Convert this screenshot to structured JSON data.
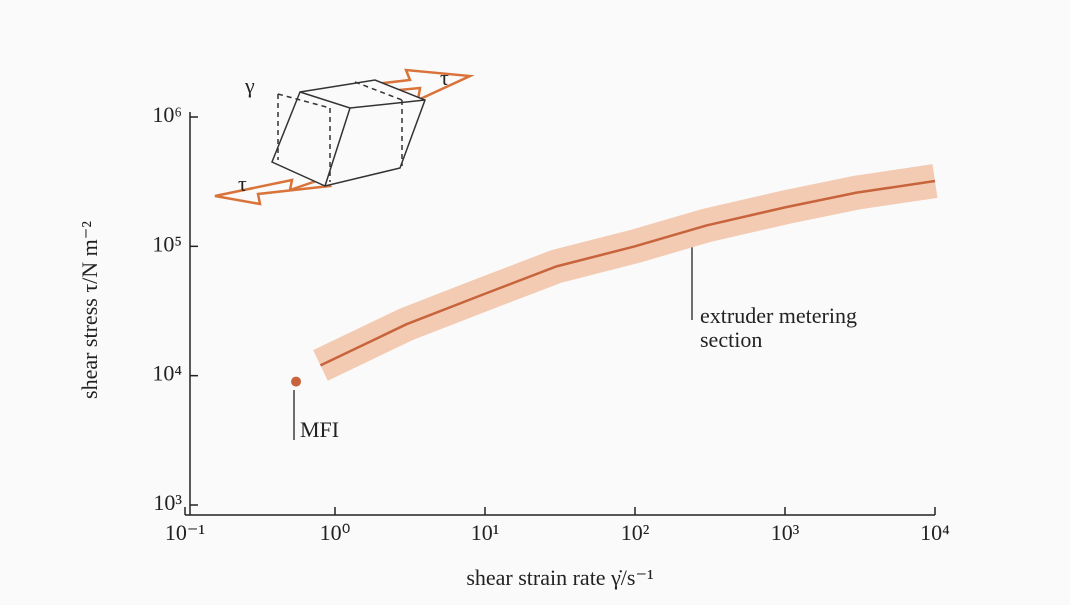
{
  "chart_data": {
    "type": "line",
    "x": [
      0.8,
      3,
      10,
      30,
      100,
      300,
      1000,
      3000,
      10000
    ],
    "values": [
      12000,
      25000,
      43000,
      70000,
      100000,
      145000,
      200000,
      260000,
      320000
    ],
    "color": "#c8643c",
    "band_color": "#f3cbb3",
    "xlog": true,
    "ylog": true,
    "xlim": [
      0.1,
      10000
    ],
    "ylim": [
      1000,
      1000000
    ],
    "xticks": [
      {
        "value": 0.1,
        "label": "10⁻¹"
      },
      {
        "value": 1,
        "label": "10⁰"
      },
      {
        "value": 10,
        "label": "10¹"
      },
      {
        "value": 100,
        "label": "10²"
      },
      {
        "value": 1000,
        "label": "10³"
      },
      {
        "value": 10000,
        "label": "10⁴"
      }
    ],
    "yticks": [
      {
        "value": 1000,
        "label": "10³"
      },
      {
        "value": 10000,
        "label": "10⁴"
      },
      {
        "value": 100000,
        "label": "10⁵"
      },
      {
        "value": 1000000,
        "label": "10⁶"
      }
    ],
    "grid": false,
    "xlabel": "shear strain rate γ̇/s⁻¹",
    "ylabel": "shear stress τ/N m⁻²",
    "point": {
      "x": 0.55,
      "y": 9000,
      "label": "MFI",
      "color": "#c8643c"
    },
    "annotation": [
      "extruder metering",
      "section"
    ],
    "inset_labels": [
      "γ",
      "τ",
      "τ"
    ]
  }
}
